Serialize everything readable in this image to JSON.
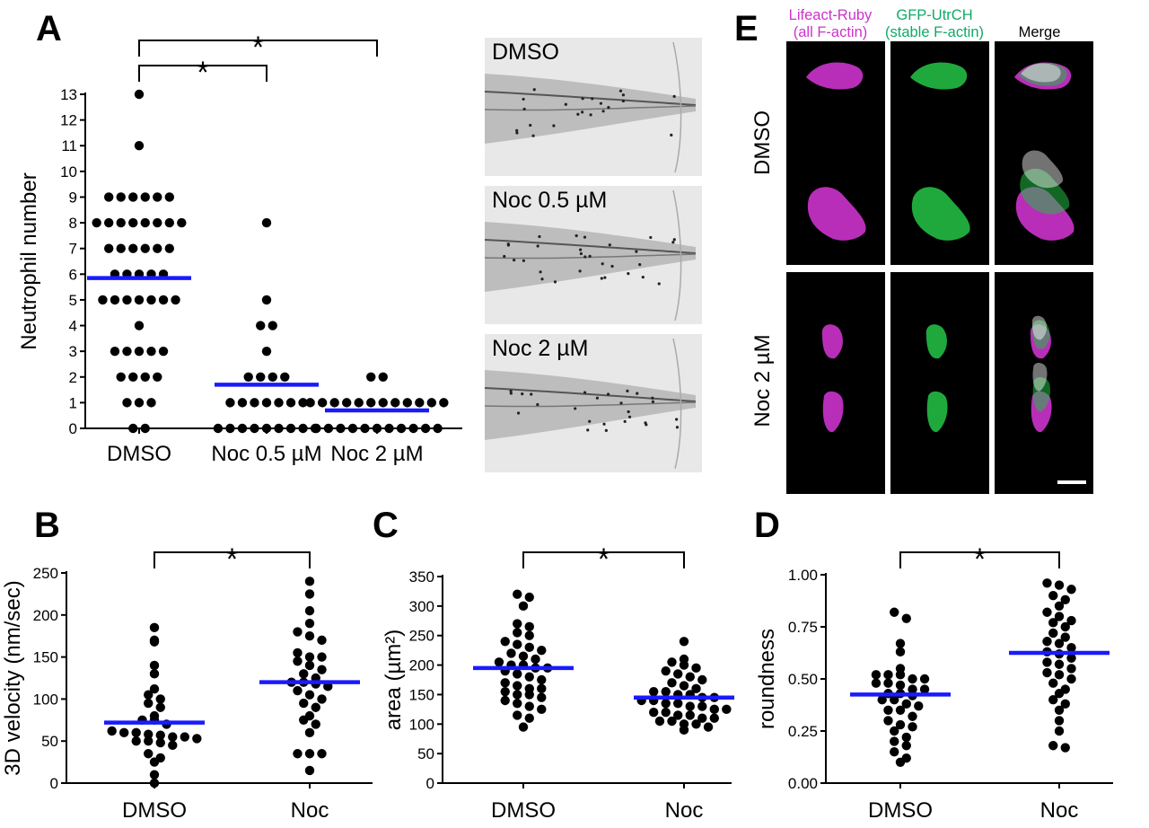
{
  "panel_letters": {
    "a": "A",
    "b": "B",
    "c": "C",
    "d": "D",
    "e": "E"
  },
  "thumbnails": [
    {
      "label": "DMSO"
    },
    {
      "label": "Noc 0.5 µM"
    },
    {
      "label": "Noc 2 µM"
    }
  ],
  "panel_e": {
    "col1_line1": "Lifeact-Ruby",
    "col1_line2": "(all F-actin)",
    "col2_line1": "GFP-UtrCH",
    "col2_line2": "(stable F-actin)",
    "col3": "Merge",
    "row1": "DMSO",
    "row2": "Noc 2 µM",
    "colors": {
      "magenta": "#cc33cc",
      "green": "#22bb44",
      "merge": "#ffffff"
    }
  },
  "colors": {
    "mean_bar": "#1a1aff",
    "dots": "#000000",
    "significance": "#000000"
  },
  "chart_data": [
    {
      "id": "A",
      "type": "scatter",
      "ylabel": "Neutrophil number",
      "xlabel": "",
      "categories": [
        "DMSO",
        "Noc 0.5 µM",
        "Noc 2 µM"
      ],
      "ylim": [
        0,
        13
      ],
      "yticks": [
        "0",
        "1",
        "2",
        "3",
        "4",
        "5",
        "6",
        "7",
        "8",
        "9",
        "10",
        "11",
        "12",
        "13"
      ],
      "means": [
        5.85,
        1.7,
        0.7
      ],
      "points": [
        [
          13,
          11,
          9,
          9,
          9,
          9,
          9,
          9,
          8,
          8,
          8,
          8,
          8,
          8,
          8,
          8,
          7,
          7,
          7,
          7,
          7,
          7,
          6,
          6,
          6,
          6,
          6,
          5,
          5,
          5,
          5,
          5,
          5,
          5,
          4,
          3,
          3,
          3,
          3,
          3,
          2,
          2,
          2,
          2,
          1,
          1,
          1,
          0,
          0
        ],
        [
          8,
          5,
          4,
          4,
          3,
          2,
          2,
          2,
          2,
          1,
          1,
          1,
          1,
          1,
          1,
          1,
          0,
          0,
          0,
          0,
          0,
          0,
          0,
          0,
          0
        ],
        [
          2,
          2,
          1,
          1,
          1,
          1,
          1,
          1,
          1,
          1,
          1,
          1,
          1,
          1,
          0,
          0,
          0,
          0,
          0,
          0,
          0,
          0,
          0,
          0,
          0
        ]
      ],
      "significance": [
        {
          "from": 0,
          "to": 1,
          "label": "*"
        },
        {
          "from": 0,
          "to": 2,
          "label": "*"
        }
      ]
    },
    {
      "id": "B",
      "type": "scatter",
      "ylabel": "3D velocity (nm/sec)",
      "xlabel": "",
      "categories": [
        "DMSO",
        "Noc"
      ],
      "ylim": [
        0,
        250
      ],
      "yticks": [
        "0",
        "50",
        "100",
        "150",
        "200",
        "250"
      ],
      "means": [
        72,
        120
      ],
      "points": [
        [
          185,
          170,
          168,
          140,
          130,
          112,
          105,
          100,
          95,
          90,
          80,
          75,
          75,
          70,
          62,
          60,
          60,
          58,
          57,
          55,
          55,
          53,
          50,
          50,
          48,
          45,
          35,
          30,
          25,
          10,
          0
        ],
        [
          240,
          225,
          205,
          190,
          180,
          175,
          170,
          155,
          150,
          150,
          145,
          140,
          135,
          130,
          125,
          120,
          120,
          118,
          115,
          110,
          105,
          100,
          95,
          90,
          80,
          75,
          70,
          60,
          35,
          35,
          35,
          15
        ]
      ],
      "significance": [
        {
          "from": 0,
          "to": 1,
          "label": "*"
        }
      ]
    },
    {
      "id": "C",
      "type": "scatter",
      "ylabel": "area (µm²)",
      "xlabel": "",
      "categories": [
        "DMSO",
        "Noc"
      ],
      "ylim": [
        0,
        350
      ],
      "yticks": [
        "0",
        "50",
        "100",
        "150",
        "200",
        "250",
        "300",
        "350"
      ],
      "means": [
        195,
        145
      ],
      "points": [
        [
          320,
          315,
          300,
          270,
          265,
          255,
          250,
          240,
          235,
          230,
          225,
          220,
          215,
          210,
          205,
          200,
          200,
          195,
          195,
          190,
          185,
          180,
          175,
          170,
          165,
          160,
          160,
          155,
          150,
          150,
          145,
          140,
          135,
          130,
          125,
          115,
          110,
          95
        ],
        [
          240,
          210,
          205,
          200,
          195,
          190,
          185,
          180,
          175,
          170,
          165,
          160,
          155,
          155,
          150,
          150,
          145,
          145,
          140,
          140,
          135,
          135,
          130,
          130,
          125,
          125,
          120,
          120,
          115,
          115,
          110,
          110,
          105,
          105,
          100,
          100,
          95,
          90
        ]
      ],
      "significance": [
        {
          "from": 0,
          "to": 1,
          "label": "*"
        }
      ]
    },
    {
      "id": "D",
      "type": "scatter",
      "ylabel": "roundness",
      "xlabel": "",
      "categories": [
        "DMSO",
        "Noc"
      ],
      "ylim": [
        0,
        1
      ],
      "yticks": [
        "0.00",
        "0.25",
        "0.50",
        "0.75",
        "1.00"
      ],
      "means": [
        0.425,
        0.625
      ],
      "points": [
        [
          0.82,
          0.79,
          0.67,
          0.63,
          0.55,
          0.52,
          0.52,
          0.52,
          0.5,
          0.5,
          0.48,
          0.48,
          0.47,
          0.45,
          0.45,
          0.43,
          0.43,
          0.42,
          0.4,
          0.4,
          0.38,
          0.37,
          0.35,
          0.35,
          0.32,
          0.3,
          0.28,
          0.27,
          0.25,
          0.22,
          0.2,
          0.18,
          0.15,
          0.12,
          0.1
        ],
        [
          0.96,
          0.95,
          0.93,
          0.9,
          0.88,
          0.85,
          0.82,
          0.8,
          0.78,
          0.77,
          0.75,
          0.72,
          0.7,
          0.68,
          0.67,
          0.65,
          0.63,
          0.62,
          0.6,
          0.58,
          0.57,
          0.55,
          0.53,
          0.52,
          0.5,
          0.48,
          0.45,
          0.43,
          0.4,
          0.38,
          0.35,
          0.3,
          0.25,
          0.18,
          0.17
        ]
      ],
      "significance": [
        {
          "from": 0,
          "to": 1,
          "label": "*"
        }
      ]
    }
  ]
}
